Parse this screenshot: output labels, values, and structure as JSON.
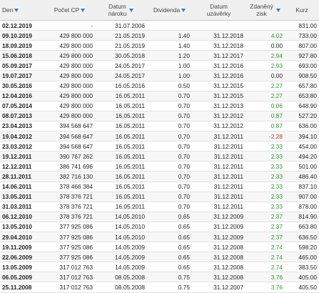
{
  "headers": {
    "den": "Den",
    "pocet_cp": "Počet CP",
    "datum_naroku": "Datum\nnároku",
    "dividenda": "Dividenda",
    "datum_uzaverky": "Datum\nuzávěrky",
    "zdaneny_zisk": "Zdaněný\nzisk",
    "kurz": "Kurz"
  },
  "sort_icons": {
    "den": "sort-down-icon",
    "pocet_cp": "sort-down-icon",
    "datum_naroku": "sort-down-icon",
    "dividenda": "sort-down-icon",
    "zdaneny_zisk": "sort-down-icon"
  },
  "colors": {
    "positive": "#2e9a2e",
    "negative": "#d23030",
    "sort_arrow": "#3a7fc4"
  },
  "rows": [
    {
      "den": "02.12.2019",
      "pocet_cp": "-",
      "datum_naroku": "31.07.2006",
      "dividenda": "",
      "datum_uzaverky": "",
      "zdaneny_zisk": "",
      "kurz": "831.00",
      "zisk_sign": ""
    },
    {
      "den": "09.10.2019",
      "pocet_cp": "429 800 000",
      "datum_naroku": "21.05.2019",
      "dividenda": "1.40",
      "datum_uzaverky": "31.12.2018",
      "zdaneny_zisk": "4.02",
      "kurz": "733.00",
      "zisk_sign": "pos"
    },
    {
      "den": "18.09.2019",
      "pocet_cp": "429 800 000",
      "datum_naroku": "21.05.2019",
      "dividenda": "1.40",
      "datum_uzaverky": "31.12.2018",
      "zdaneny_zisk": "0.00",
      "kurz": "807.00",
      "zisk_sign": ""
    },
    {
      "den": "15.06.2018",
      "pocet_cp": "429 800 000",
      "datum_naroku": "30.05.2018",
      "dividenda": "1.20",
      "datum_uzaverky": "31.12.2017",
      "zdaneny_zisk": "2.94",
      "kurz": "927.80",
      "zisk_sign": "pos"
    },
    {
      "den": "05.09.2017",
      "pocet_cp": "429 800 000",
      "datum_naroku": "24.05.2017",
      "dividenda": "1.00",
      "datum_uzaverky": "31.12.2016",
      "zdaneny_zisk": "2.93",
      "kurz": "693.00",
      "zisk_sign": "pos"
    },
    {
      "den": "19.07.2017",
      "pocet_cp": "429 800 000",
      "datum_naroku": "24.05.2017",
      "dividenda": "1.00",
      "datum_uzaverky": "31.12.2016",
      "zdaneny_zisk": "0.00",
      "kurz": "908.50",
      "zisk_sign": ""
    },
    {
      "den": "30.05.2016",
      "pocet_cp": "429 800 000",
      "datum_naroku": "16.05.2016",
      "dividenda": "0.50",
      "datum_uzaverky": "31.12.2015",
      "zdaneny_zisk": "2.27",
      "kurz": "657.80",
      "zisk_sign": "pos"
    },
    {
      "den": "12.04.2016",
      "pocet_cp": "429 800 000",
      "datum_naroku": "16.05.2011",
      "dividenda": "0.70",
      "datum_uzaverky": "31.12.2015",
      "zdaneny_zisk": "2.27",
      "kurz": "653.80",
      "zisk_sign": "pos"
    },
    {
      "den": "07.05.2014",
      "pocet_cp": "429 800 000",
      "datum_naroku": "16.05.2011",
      "dividenda": "0.70",
      "datum_uzaverky": "31.12.2013",
      "zdaneny_zisk": "0.06",
      "kurz": "648.90",
      "zisk_sign": "pos"
    },
    {
      "den": "08.07.2013",
      "pocet_cp": "429 800 000",
      "datum_naroku": "16.05.2011",
      "dividenda": "0.70",
      "datum_uzaverky": "31.12.2012",
      "zdaneny_zisk": "0.87",
      "kurz": "527.20",
      "zisk_sign": "pos"
    },
    {
      "den": "23.04.2013",
      "pocet_cp": "394 568 647",
      "datum_naroku": "16.05.2011",
      "dividenda": "0.70",
      "datum_uzaverky": "31.12.2012",
      "zdaneny_zisk": "0.87",
      "kurz": "636.00",
      "zisk_sign": "pos"
    },
    {
      "den": "19.04.2012",
      "pocet_cp": "394 568 647",
      "datum_naroku": "16.05.2011",
      "dividenda": "0.70",
      "datum_uzaverky": "31.12.2011",
      "zdaneny_zisk": "-2.28",
      "kurz": "394.10",
      "zisk_sign": "neg"
    },
    {
      "den": "23.03.2012",
      "pocet_cp": "394 568 647",
      "datum_naroku": "16.05.2011",
      "dividenda": "0.70",
      "datum_uzaverky": "31.12.2011",
      "zdaneny_zisk": "2.33",
      "kurz": "454.00",
      "zisk_sign": "pos"
    },
    {
      "den": "19.12.2011",
      "pocet_cp": "390 767 262",
      "datum_naroku": "16.05.2011",
      "dividenda": "0.70",
      "datum_uzaverky": "31.12.2011",
      "zdaneny_zisk": "2.33",
      "kurz": "494.20",
      "zisk_sign": "pos"
    },
    {
      "den": "12.12.2011",
      "pocet_cp": "386 741 696",
      "datum_naroku": "16.05.2011",
      "dividenda": "0.70",
      "datum_uzaverky": "31.12.2011",
      "zdaneny_zisk": "2.33",
      "kurz": "501.00",
      "zisk_sign": "pos"
    },
    {
      "den": "28.11.2011",
      "pocet_cp": "382 716 130",
      "datum_naroku": "16.05.2011",
      "dividenda": "0.70",
      "datum_uzaverky": "31.12.2011",
      "zdaneny_zisk": "2.33",
      "kurz": "486.40",
      "zisk_sign": "pos"
    },
    {
      "den": "14.06.2011",
      "pocet_cp": "378 466 384",
      "datum_naroku": "16.05.2011",
      "dividenda": "0.70",
      "datum_uzaverky": "31.12.2011",
      "zdaneny_zisk": "2.33",
      "kurz": "837.10",
      "zisk_sign": "pos"
    },
    {
      "den": "13.05.2011",
      "pocet_cp": "378 376 721",
      "datum_naroku": "16.05.2011",
      "dividenda": "0.70",
      "datum_uzaverky": "31.12.2011",
      "zdaneny_zisk": "2.33",
      "kurz": "907.00",
      "zisk_sign": "pos"
    },
    {
      "den": "31.03.2011",
      "pocet_cp": "378 376 721",
      "datum_naroku": "16.05.2011",
      "dividenda": "0.70",
      "datum_uzaverky": "31.12.2011",
      "zdaneny_zisk": "2.33",
      "kurz": "878.00",
      "zisk_sign": "pos"
    },
    {
      "den": "06.12.2010",
      "pocet_cp": "378 376 721",
      "datum_naroku": "14.05.2010",
      "dividenda": "0.65",
      "datum_uzaverky": "31.12.2009",
      "zdaneny_zisk": "2.37",
      "kurz": "814.90",
      "zisk_sign": "pos"
    },
    {
      "den": "13.05.2010",
      "pocet_cp": "377 925 086",
      "datum_naroku": "14.05.2010",
      "dividenda": "0.65",
      "datum_uzaverky": "31.12.2009",
      "zdaneny_zisk": "2.37",
      "kurz": "663.80",
      "zisk_sign": "pos"
    },
    {
      "den": "29.04.2010",
      "pocet_cp": "377 925 086",
      "datum_naroku": "14.05.2010",
      "dividenda": "0.65",
      "datum_uzaverky": "31.12.2009",
      "zdaneny_zisk": "2.37",
      "kurz": "636.50",
      "zisk_sign": "pos"
    },
    {
      "den": "19.11.2009",
      "pocet_cp": "377 925 086",
      "datum_naroku": "14.05.2009",
      "dividenda": "0.65",
      "datum_uzaverky": "31.12.2008",
      "zdaneny_zisk": "2.74",
      "kurz": "598.20",
      "zisk_sign": "pos"
    },
    {
      "den": "22.06.2009",
      "pocet_cp": "377 925 086",
      "datum_naroku": "14.05.2009",
      "dividenda": "0.65",
      "datum_uzaverky": "31.12.2008",
      "zdaneny_zisk": "2.74",
      "kurz": "465.00",
      "zisk_sign": "pos"
    },
    {
      "den": "13.05.2009",
      "pocet_cp": "317 012 763",
      "datum_naroku": "14.05.2009",
      "dividenda": "0.65",
      "datum_uzaverky": "31.12.2008",
      "zdaneny_zisk": "2.74",
      "kurz": "383.50",
      "zisk_sign": "pos"
    },
    {
      "den": "06.05.2009",
      "pocet_cp": "317 012 763",
      "datum_naroku": "08.05.2008",
      "dividenda": "0.75",
      "datum_uzaverky": "31.12.2008",
      "zdaneny_zisk": "3.76",
      "kurz": "405.00",
      "zisk_sign": "pos"
    },
    {
      "den": "25.11.2008",
      "pocet_cp": "317 012 763",
      "datum_naroku": "08.05.2008",
      "dividenda": "0.75",
      "datum_uzaverky": "31.12.2007",
      "zdaneny_zisk": "3.76",
      "kurz": "405.50",
      "zisk_sign": "pos"
    }
  ]
}
